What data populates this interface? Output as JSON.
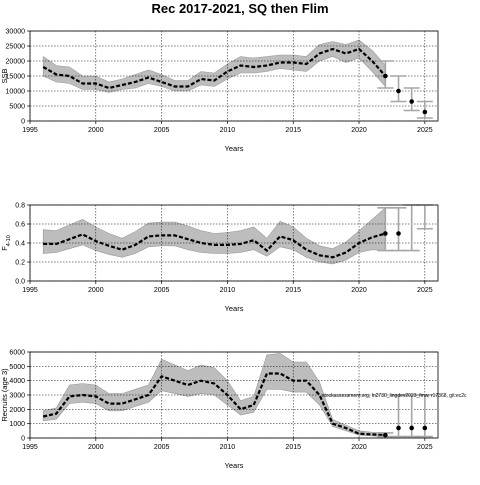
{
  "title": "Rec 2017-2021, SQ then Flim",
  "chart_data": [
    {
      "type": "line",
      "xlabel": "Years",
      "ylabel": "SSB",
      "xlim": [
        1995,
        2026
      ],
      "ylim": [
        0,
        30000
      ],
      "xticks": [
        1995,
        2000,
        2005,
        2010,
        2015,
        2020,
        2025
      ],
      "yticks": [
        0,
        5000,
        10000,
        15000,
        20000,
        25000,
        30000
      ],
      "grid": true,
      "x": [
        1996,
        1997,
        1998,
        1999,
        2000,
        2001,
        2002,
        2003,
        2004,
        2005,
        2006,
        2007,
        2008,
        2009,
        2010,
        2011,
        2012,
        2013,
        2014,
        2015,
        2016,
        2017,
        2018,
        2019,
        2020,
        2021,
        2022
      ],
      "median": [
        18000,
        15500,
        15000,
        12500,
        12500,
        11000,
        12000,
        13000,
        14500,
        13000,
        11500,
        11500,
        14000,
        13500,
        16500,
        18500,
        18000,
        18500,
        19500,
        19500,
        19000,
        22500,
        24000,
        22500,
        24000,
        20000,
        15000
      ],
      "lower": [
        15000,
        13000,
        12500,
        10500,
        10500,
        9500,
        10500,
        11000,
        12500,
        11500,
        10000,
        10000,
        12000,
        11500,
        14000,
        16000,
        16000,
        16500,
        17500,
        17000,
        16500,
        20000,
        21500,
        19500,
        21000,
        16500,
        11500
      ],
      "upper": [
        21500,
        18500,
        18000,
        15000,
        15000,
        13000,
        14000,
        15500,
        17000,
        15500,
        13500,
        13500,
        16500,
        16000,
        19000,
        21500,
        21000,
        21500,
        22000,
        22000,
        21500,
        25500,
        26500,
        25500,
        27000,
        23500,
        18500
      ],
      "projection": {
        "x": [
          2022,
          2023,
          2024,
          2025
        ],
        "median": [
          15000,
          10000,
          6500,
          3000
        ],
        "lower": [
          11000,
          6500,
          3500,
          1000
        ],
        "upper": [
          20000,
          15000,
          11000,
          6500
        ]
      }
    },
    {
      "type": "line",
      "xlabel": "Years",
      "ylabel": "F4-10",
      "ylabel_main": "F",
      "ylabel_sub": "4-10",
      "xlim": [
        1995,
        2026
      ],
      "ylim": [
        0,
        0.8
      ],
      "xticks": [
        1995,
        2000,
        2005,
        2010,
        2015,
        2020,
        2025
      ],
      "yticks": [
        0.0,
        0.2,
        0.4,
        0.6,
        0.8
      ],
      "ytick_labels": [
        "0.0",
        "0.2",
        "0.4",
        "0.6",
        "0.8"
      ],
      "grid": true,
      "x": [
        1996,
        1997,
        1998,
        1999,
        2000,
        2001,
        2002,
        2003,
        2004,
        2005,
        2006,
        2007,
        2008,
        2009,
        2010,
        2011,
        2012,
        2013,
        2014,
        2015,
        2016,
        2017,
        2018,
        2019,
        2020,
        2021,
        2022
      ],
      "median": [
        0.39,
        0.39,
        0.44,
        0.49,
        0.42,
        0.37,
        0.33,
        0.38,
        0.47,
        0.48,
        0.48,
        0.44,
        0.4,
        0.38,
        0.38,
        0.39,
        0.43,
        0.32,
        0.47,
        0.43,
        0.33,
        0.27,
        0.25,
        0.3,
        0.4,
        0.46,
        0.5
      ],
      "lower": [
        0.29,
        0.3,
        0.34,
        0.38,
        0.32,
        0.28,
        0.25,
        0.29,
        0.36,
        0.37,
        0.37,
        0.33,
        0.3,
        0.29,
        0.29,
        0.3,
        0.33,
        0.26,
        0.36,
        0.33,
        0.25,
        0.2,
        0.18,
        0.22,
        0.3,
        0.33,
        0.32
      ],
      "upper": [
        0.54,
        0.53,
        0.59,
        0.65,
        0.57,
        0.5,
        0.45,
        0.52,
        0.61,
        0.62,
        0.62,
        0.58,
        0.53,
        0.5,
        0.51,
        0.53,
        0.57,
        0.45,
        0.63,
        0.57,
        0.45,
        0.37,
        0.34,
        0.41,
        0.53,
        0.65,
        0.77
      ],
      "projection": {
        "x": [
          2022,
          2023,
          2024,
          2025
        ],
        "median": [
          0.5,
          0.5,
          null,
          null
        ],
        "lower": [
          0.32,
          0.32,
          0.32,
          0.55
        ],
        "upper": [
          0.77,
          0.77,
          0.8,
          0.8
        ]
      }
    },
    {
      "type": "line",
      "xlabel": "Years",
      "ylabel": "Recruits (age 3)",
      "xlim": [
        1995,
        2026
      ],
      "ylim": [
        0,
        6000
      ],
      "xticks": [
        1995,
        2000,
        2005,
        2010,
        2015,
        2020,
        2025
      ],
      "yticks": [
        0,
        1000,
        2000,
        3000,
        4000,
        5000,
        6000
      ],
      "grid": true,
      "annotation": "stockassessment.org, ln2730_lingdev2023_fmw, r17368, git:ec2c",
      "x": [
        1996,
        1997,
        1998,
        1999,
        2000,
        2001,
        2002,
        2003,
        2004,
        2005,
        2006,
        2007,
        2008,
        2009,
        2010,
        2011,
        2012,
        2013,
        2014,
        2015,
        2016,
        2017,
        2018,
        2019,
        2020,
        2021,
        2022
      ],
      "median": [
        1500,
        1700,
        2900,
        3000,
        2900,
        2400,
        2400,
        2700,
        3000,
        4300,
        4000,
        3700,
        4000,
        3800,
        3000,
        2000,
        2300,
        4500,
        4500,
        4000,
        4000,
        3000,
        1000,
        700,
        300,
        250,
        200
      ],
      "lower": [
        1200,
        1300,
        2400,
        2500,
        2400,
        1900,
        1900,
        2200,
        2500,
        3300,
        3100,
        2900,
        3100,
        3000,
        2300,
        1600,
        1800,
        3400,
        3400,
        3200,
        3200,
        2300,
        800,
        500,
        200,
        150,
        100
      ],
      "upper": [
        1900,
        2100,
        3700,
        3800,
        3700,
        3100,
        3100,
        3400,
        3700,
        5500,
        5100,
        4700,
        5100,
        4900,
        4000,
        2600,
        2900,
        5800,
        5900,
        5300,
        5300,
        3900,
        1300,
        900,
        500,
        400,
        350
      ],
      "projection": {
        "x": [
          2022,
          2023,
          2024,
          2025
        ],
        "median": [
          200,
          700,
          700,
          700
        ],
        "lower": [
          100,
          100,
          100,
          100
        ],
        "upper": [
          350,
          3000,
          3000,
          3000
        ]
      }
    }
  ]
}
